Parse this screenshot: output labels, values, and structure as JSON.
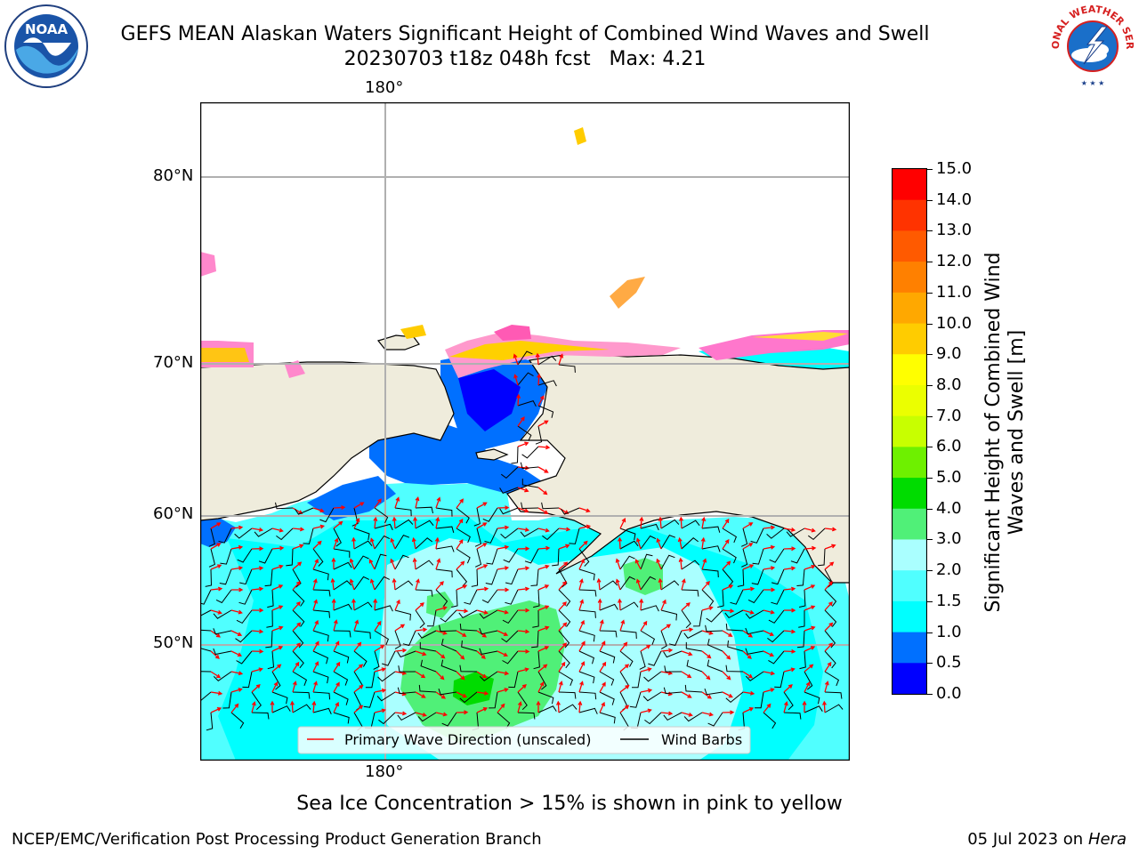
{
  "title": {
    "line1": "GEFS MEAN Alaskan Waters Significant Height of Combined Wind Waves and Swell",
    "line2": "20230703 t18z 048h fcst   Max: 4.21"
  },
  "logos": {
    "left": {
      "icon": "noaa-logo",
      "text": "NOAA"
    },
    "right": {
      "icon": "nws-logo",
      "text": "NATIONAL WEATHER SERVICE"
    }
  },
  "map": {
    "lon_label_top": "180°",
    "lon_label_bottom": "180°",
    "lat_labels": [
      "80°N",
      "70°N",
      "60°N",
      "50°N"
    ],
    "colors": {
      "land": "#efecdc",
      "coast": "#000000",
      "grid": "#b0b0b0",
      "wave_arrow": "#ff0000",
      "barb": "#000000"
    },
    "legend": {
      "wave_direction": "Primary Wave Direction (unscaled)",
      "wind_barbs": "Wind Barbs"
    }
  },
  "colorbar": {
    "title": "Significant Height of Combined Wind Waves and Swell [m]",
    "ticks": [
      "15.0",
      "14.0",
      "13.0",
      "12.0",
      "11.0",
      "10.0",
      "9.0",
      "8.0",
      "7.0",
      "6.0",
      "5.0",
      "4.0",
      "3.0",
      "2.0",
      "1.5",
      "1.0",
      "0.5",
      "0.0"
    ],
    "colors": [
      "#ff0000",
      "#ff3300",
      "#ff5a00",
      "#ff8000",
      "#ffa800",
      "#ffcc00",
      "#ffff00",
      "#ebff00",
      "#c8ff00",
      "#6ef000",
      "#00dc00",
      "#50f078",
      "#aaffff",
      "#50ffff",
      "#00ffff",
      "#0070ff",
      "#0000ff"
    ]
  },
  "note": "Sea Ice Concentration > 15% is shown in pink to yellow",
  "footer": {
    "left": "NCEP/EMC/Verification Post Processing Product Generation Branch",
    "right_date": "05 Jul 2023 on",
    "right_host": "Hera"
  }
}
